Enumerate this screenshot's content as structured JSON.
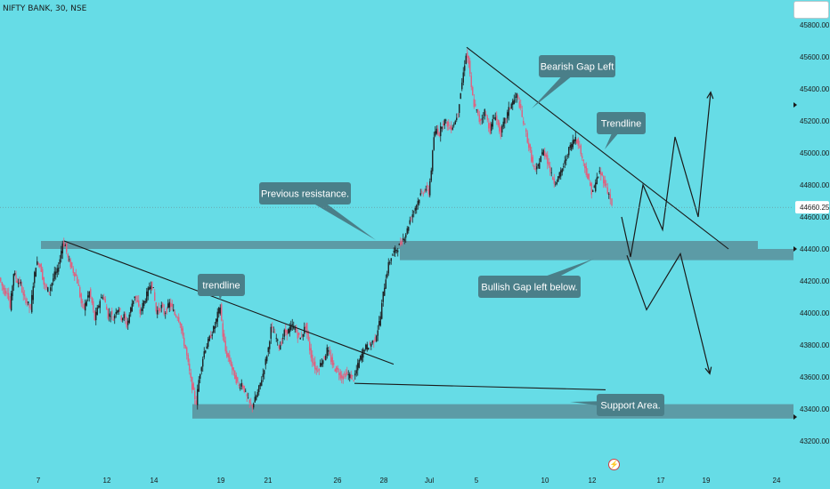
{
  "header": {
    "symbol": "NIFTY BANK",
    "interval": "30",
    "exchange": "NSE"
  },
  "colors": {
    "background": "#66dce6",
    "candle_up": "#1f2326",
    "candle_down": "#e0607e",
    "zone": "#5b8f9a",
    "callout": "#4a7f89",
    "callout_text": "#ffffff",
    "line": "#1a1a1a",
    "price_tag": "#ffffff"
  },
  "icons": {
    "flash": "lightning-icon",
    "scale_arrow": "triangle-right-icon"
  },
  "chart_data": {
    "type": "candlestick",
    "title": "NIFTY BANK, 30, NSE",
    "ylim": [
      43140,
      45900
    ],
    "y_ticks": [
      "45800.00",
      "45600.00",
      "45400.00",
      "45200.00",
      "45000.00",
      "44800.00",
      "44600.00",
      "44400.00",
      "44200.00",
      "44000.00",
      "43800.00",
      "43600.00",
      "43400.00",
      "43200.00"
    ],
    "x_ticks": [
      "7",
      "12",
      "14",
      "19",
      "21",
      "26",
      "28",
      "Jul",
      "5",
      "10",
      "12",
      "17",
      "19",
      "24"
    ],
    "last_price": "44660.25",
    "grid": false,
    "series_path": [
      [
        0,
        44220
      ],
      [
        3,
        44170
      ],
      [
        6,
        44130
      ],
      [
        9,
        44140
      ],
      [
        12,
        44030
      ],
      [
        16,
        44250
      ],
      [
        20,
        44200
      ],
      [
        24,
        44180
      ],
      [
        27,
        44100
      ],
      [
        31,
        44070
      ],
      [
        35,
        44020
      ],
      [
        38,
        44180
      ],
      [
        41,
        44300
      ],
      [
        44,
        44320
      ],
      [
        47,
        44270
      ],
      [
        50,
        44180
      ],
      [
        53,
        44150
      ],
      [
        56,
        44140
      ],
      [
        59,
        44190
      ],
      [
        62,
        44240
      ],
      [
        65,
        44260
      ],
      [
        68,
        44340
      ],
      [
        71,
        44440
      ],
      [
        74,
        44420
      ],
      [
        77,
        44340
      ],
      [
        80,
        44300
      ],
      [
        83,
        44260
      ],
      [
        86,
        44230
      ],
      [
        89,
        44160
      ],
      [
        92,
        44060
      ],
      [
        95,
        44030
      ],
      [
        98,
        44080
      ],
      [
        101,
        44130
      ],
      [
        104,
        44060
      ],
      [
        107,
        43960
      ],
      [
        110,
        44020
      ],
      [
        113,
        44080
      ],
      [
        116,
        44110
      ],
      [
        119,
        44060
      ],
      [
        122,
        43980
      ],
      [
        125,
        44000
      ],
      [
        128,
        43960
      ],
      [
        131,
        44020
      ],
      [
        134,
        44030
      ],
      [
        137,
        43970
      ],
      [
        140,
        43980
      ],
      [
        143,
        43920
      ],
      [
        146,
        43990
      ],
      [
        149,
        44060
      ],
      [
        152,
        44110
      ],
      [
        155,
        44060
      ],
      [
        158,
        44000
      ],
      [
        161,
        44050
      ],
      [
        164,
        44090
      ],
      [
        167,
        44140
      ],
      [
        170,
        44190
      ],
      [
        173,
        44140
      ],
      [
        176,
        44010
      ],
      [
        179,
        44020
      ],
      [
        182,
        44040
      ],
      [
        185,
        44000
      ],
      [
        188,
        44020
      ],
      [
        191,
        44060
      ],
      [
        194,
        44030
      ],
      [
        197,
        43990
      ],
      [
        200,
        43980
      ],
      [
        203,
        43940
      ],
      [
        206,
        43840
      ],
      [
        209,
        43780
      ],
      [
        212,
        43680
      ],
      [
        215,
        43580
      ],
      [
        218,
        43500
      ],
      [
        221,
        43440
      ],
      [
        224,
        43580
      ],
      [
        227,
        43680
      ],
      [
        230,
        43760
      ],
      [
        233,
        43800
      ],
      [
        236,
        43840
      ],
      [
        239,
        43880
      ],
      [
        242,
        43920
      ],
      [
        245,
        43990
      ],
      [
        248,
        44040
      ],
      [
        251,
        43860
      ],
      [
        254,
        43760
      ],
      [
        257,
        43720
      ],
      [
        260,
        43680
      ],
      [
        263,
        43620
      ],
      [
        266,
        43580
      ],
      [
        269,
        43540
      ],
      [
        272,
        43560
      ],
      [
        275,
        43520
      ],
      [
        278,
        43470
      ],
      [
        281,
        43430
      ],
      [
        284,
        43420
      ],
      [
        287,
        43460
      ],
      [
        290,
        43500
      ],
      [
        293,
        43560
      ],
      [
        296,
        43620
      ],
      [
        299,
        43700
      ],
      [
        302,
        43780
      ],
      [
        305,
        43900
      ],
      [
        308,
        43880
      ],
      [
        311,
        43840
      ],
      [
        314,
        43790
      ],
      [
        317,
        43820
      ],
      [
        320,
        43880
      ],
      [
        323,
        43880
      ],
      [
        326,
        43900
      ],
      [
        329,
        43920
      ],
      [
        332,
        43900
      ],
      [
        335,
        43860
      ],
      [
        338,
        43840
      ],
      [
        341,
        43880
      ],
      [
        344,
        43920
      ],
      [
        347,
        43820
      ],
      [
        350,
        43730
      ],
      [
        353,
        43680
      ],
      [
        356,
        43640
      ],
      [
        359,
        43660
      ],
      [
        362,
        43700
      ],
      [
        365,
        43720
      ],
      [
        368,
        43770
      ],
      [
        371,
        43730
      ],
      [
        374,
        43680
      ],
      [
        377,
        43650
      ],
      [
        380,
        43640
      ],
      [
        383,
        43610
      ],
      [
        386,
        43600
      ],
      [
        389,
        43620
      ],
      [
        392,
        43610
      ],
      [
        395,
        43600
      ],
      [
        398,
        43590
      ],
      [
        401,
        43640
      ],
      [
        404,
        43700
      ],
      [
        407,
        43740
      ],
      [
        410,
        43780
      ],
      [
        413,
        43790
      ],
      [
        416,
        43800
      ],
      [
        419,
        43820
      ],
      [
        422,
        43840
      ],
      [
        425,
        43900
      ],
      [
        428,
        43980
      ],
      [
        431,
        44120
      ],
      [
        434,
        44220
      ],
      [
        437,
        44300
      ],
      [
        440,
        44350
      ],
      [
        443,
        44380
      ],
      [
        446,
        44400
      ],
      [
        449,
        44420
      ],
      [
        452,
        44450
      ],
      [
        455,
        44480
      ],
      [
        458,
        44520
      ],
      [
        461,
        44580
      ],
      [
        464,
        44620
      ],
      [
        467,
        44660
      ],
      [
        470,
        44700
      ],
      [
        473,
        44740
      ],
      [
        476,
        44760
      ],
      [
        479,
        44780
      ],
      [
        482,
        44750
      ],
      [
        485,
        44900
      ],
      [
        488,
        45100
      ],
      [
        491,
        45150
      ],
      [
        494,
        45120
      ],
      [
        497,
        45180
      ],
      [
        500,
        45200
      ],
      [
        503,
        45180
      ],
      [
        506,
        45150
      ],
      [
        509,
        45170
      ],
      [
        512,
        45200
      ],
      [
        515,
        45260
      ],
      [
        518,
        45380
      ],
      [
        521,
        45500
      ],
      [
        524,
        45620
      ],
      [
        527,
        45560
      ],
      [
        530,
        45400
      ],
      [
        533,
        45300
      ],
      [
        536,
        45260
      ],
      [
        539,
        45200
      ],
      [
        542,
        45220
      ],
      [
        545,
        45260
      ],
      [
        548,
        45200
      ],
      [
        551,
        45140
      ],
      [
        554,
        45200
      ],
      [
        557,
        45240
      ],
      [
        560,
        45170
      ],
      [
        563,
        45120
      ],
      [
        566,
        45180
      ],
      [
        569,
        45220
      ],
      [
        572,
        45270
      ],
      [
        575,
        45310
      ],
      [
        578,
        45330
      ],
      [
        581,
        45360
      ],
      [
        584,
        45300
      ],
      [
        587,
        45220
      ],
      [
        590,
        45160
      ],
      [
        593,
        45080
      ],
      [
        596,
        45000
      ],
      [
        599,
        44930
      ],
      [
        602,
        44880
      ],
      [
        605,
        44920
      ],
      [
        608,
        44980
      ],
      [
        611,
        45010
      ],
      [
        614,
        44980
      ],
      [
        617,
        44920
      ],
      [
        620,
        44860
      ],
      [
        623,
        44820
      ],
      [
        626,
        44830
      ],
      [
        629,
        44860
      ],
      [
        632,
        44900
      ],
      [
        635,
        44940
      ],
      [
        638,
        45000
      ],
      [
        641,
        45040
      ],
      [
        644,
        45070
      ],
      [
        647,
        45100
      ],
      [
        650,
        45060
      ],
      [
        653,
        45000
      ],
      [
        656,
        44940
      ],
      [
        659,
        44880
      ],
      [
        662,
        44820
      ],
      [
        665,
        44760
      ],
      [
        668,
        44780
      ],
      [
        671,
        44840
      ],
      [
        674,
        44880
      ],
      [
        677,
        44850
      ],
      [
        680,
        44810
      ],
      [
        683,
        44760
      ],
      [
        686,
        44720
      ],
      [
        688,
        44660
      ]
    ],
    "zones": [
      {
        "from": 44400,
        "to": 44450,
        "x_start": 46,
        "x_end": 851
      },
      {
        "from": 44330,
        "to": 44400,
        "x_start": 449,
        "x_end": 891
      },
      {
        "from": 43340,
        "to": 43430,
        "x_start": 216,
        "x_end": 891
      }
    ],
    "trendlines": [
      {
        "points": [
          [
            72,
            44450
          ],
          [
            442,
            43680
          ]
        ]
      },
      {
        "points": [
          [
            524,
            45660
          ],
          [
            818,
            44400
          ]
        ]
      },
      {
        "points": [
          [
            398,
            43560
          ],
          [
            680,
            43520
          ]
        ]
      }
    ],
    "projections": [
      {
        "points": [
          [
            698,
            44600
          ],
          [
            708,
            44350
          ],
          [
            722,
            44800
          ],
          [
            744,
            44520
          ],
          [
            758,
            45100
          ],
          [
            784,
            44600
          ],
          [
            798,
            45380
          ]
        ]
      },
      {
        "points": [
          [
            704,
            44360
          ],
          [
            726,
            44020
          ],
          [
            764,
            44370
          ],
          [
            797,
            43620
          ]
        ]
      }
    ],
    "annotations": [
      {
        "text": "Bearish Gap Left"
      },
      {
        "text": "Trendline"
      },
      {
        "text": "Previous resistance."
      },
      {
        "text": "trendline"
      },
      {
        "text": "Bullish Gap left below."
      },
      {
        "text": "Support Area."
      }
    ]
  }
}
